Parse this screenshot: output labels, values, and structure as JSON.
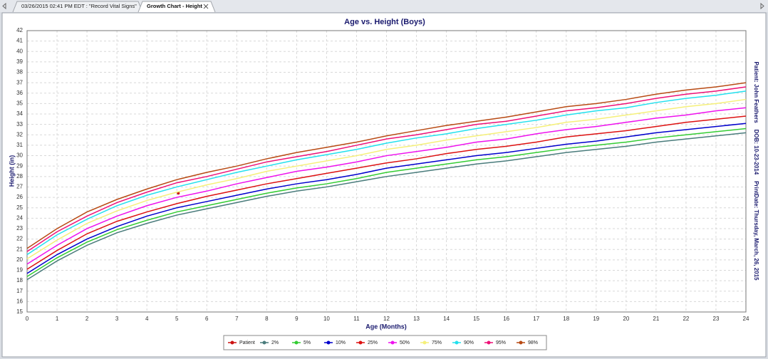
{
  "tabs": [
    "03/26/2015 02:41 PM EDT : \"Record Vital Signs\"",
    "Growth Chart - Height"
  ],
  "chart_data": {
    "type": "line",
    "title": "Age vs. Height (Boys)",
    "x_label": "Age (Months)",
    "y_label": "Height (in)",
    "annotation": "Patient: John Feathers    DOB: 10-23-2014    PrintDate: Thursday, March, 26, 2015",
    "xlim": [
      0,
      24
    ],
    "xticks": [
      0,
      1,
      2,
      3,
      4,
      5,
      6,
      7,
      8,
      9,
      10,
      11,
      12,
      13,
      14,
      15,
      16,
      17,
      18,
      19,
      20,
      21,
      22,
      23,
      24
    ],
    "ylim": [
      15,
      42
    ],
    "yticks": [
      15,
      16,
      17,
      18,
      19,
      20,
      21,
      22,
      23,
      24,
      25,
      26,
      27,
      28,
      29,
      30,
      31,
      32,
      33,
      34,
      35,
      36,
      37,
      38,
      39,
      40,
      41,
      42
    ],
    "grid": true,
    "legend": "bottom",
    "x": [
      0,
      1,
      2,
      3,
      4,
      5,
      6,
      7,
      8,
      9,
      10,
      11,
      12,
      13,
      14,
      15,
      16,
      17,
      18,
      19,
      20,
      21,
      22,
      23,
      24
    ],
    "series": [
      {
        "name": "Patient",
        "color": "#cc1111",
        "x": [
          5.05
        ],
        "values": [
          26.4
        ]
      },
      {
        "name": "2%",
        "color": "#4a7c7c",
        "values": [
          18.1,
          19.9,
          21.4,
          22.6,
          23.5,
          24.3,
          24.9,
          25.5,
          26.1,
          26.6,
          27.0,
          27.5,
          28.0,
          28.4,
          28.8,
          29.2,
          29.5,
          29.9,
          30.3,
          30.6,
          30.9,
          31.3,
          31.6,
          31.9,
          32.2
        ]
      },
      {
        "name": "5%",
        "color": "#33cc33",
        "values": [
          18.4,
          20.2,
          21.7,
          22.9,
          23.8,
          24.6,
          25.2,
          25.8,
          26.4,
          26.9,
          27.3,
          27.8,
          28.4,
          28.8,
          29.2,
          29.6,
          29.9,
          30.3,
          30.7,
          31.0,
          31.3,
          31.7,
          32.0,
          32.3,
          32.6
        ]
      },
      {
        "name": "10%",
        "color": "#0000cc",
        "values": [
          18.7,
          20.5,
          22.0,
          23.2,
          24.2,
          25.0,
          25.6,
          26.2,
          26.8,
          27.3,
          27.7,
          28.2,
          28.8,
          29.2,
          29.6,
          30.0,
          30.3,
          30.7,
          31.1,
          31.4,
          31.8,
          32.2,
          32.5,
          32.8,
          33.1
        ]
      },
      {
        "name": "25%",
        "color": "#dd1111",
        "values": [
          19.1,
          20.9,
          22.5,
          23.7,
          24.6,
          25.4,
          26.1,
          26.7,
          27.3,
          27.8,
          28.3,
          28.8,
          29.3,
          29.7,
          30.2,
          30.6,
          30.9,
          31.3,
          31.8,
          32.1,
          32.4,
          32.8,
          33.2,
          33.5,
          33.8
        ]
      },
      {
        "name": "50%",
        "color": "#ee11ee",
        "values": [
          19.6,
          21.4,
          23.0,
          24.2,
          25.2,
          26.0,
          26.6,
          27.3,
          27.9,
          28.5,
          28.9,
          29.4,
          30.0,
          30.4,
          30.8,
          31.3,
          31.6,
          32.1,
          32.5,
          32.8,
          33.2,
          33.6,
          33.9,
          34.3,
          34.6
        ]
      },
      {
        "name": "75%",
        "color": "#f5f07a",
        "values": [
          20.1,
          21.9,
          23.5,
          24.7,
          25.7,
          26.5,
          27.2,
          27.8,
          28.5,
          29.0,
          29.5,
          30.0,
          30.6,
          31.0,
          31.5,
          31.9,
          32.3,
          32.7,
          33.2,
          33.5,
          33.9,
          34.3,
          34.7,
          35.0,
          35.4
        ]
      },
      {
        "name": "90%",
        "color": "#22e0ee",
        "values": [
          20.5,
          22.4,
          23.9,
          25.2,
          26.2,
          27.0,
          27.7,
          28.4,
          29.0,
          29.6,
          30.1,
          30.6,
          31.2,
          31.7,
          32.1,
          32.6,
          33.0,
          33.4,
          33.9,
          34.3,
          34.6,
          35.1,
          35.5,
          35.8,
          36.2
        ]
      },
      {
        "name": "95%",
        "color": "#ee1177",
        "values": [
          20.8,
          22.7,
          24.2,
          25.5,
          26.5,
          27.4,
          28.0,
          28.7,
          29.4,
          29.9,
          30.4,
          31.0,
          31.6,
          32.0,
          32.5,
          33.0,
          33.3,
          33.8,
          34.3,
          34.6,
          35.0,
          35.5,
          35.9,
          36.2,
          36.6
        ]
      },
      {
        "name": "98%",
        "color": "#b84a14",
        "values": [
          21.1,
          23.0,
          24.6,
          25.8,
          26.8,
          27.7,
          28.4,
          29.0,
          29.7,
          30.3,
          30.8,
          31.3,
          31.9,
          32.4,
          32.9,
          33.3,
          33.7,
          34.2,
          34.7,
          35.0,
          35.4,
          35.9,
          36.3,
          36.6,
          37.0
        ]
      }
    ]
  }
}
